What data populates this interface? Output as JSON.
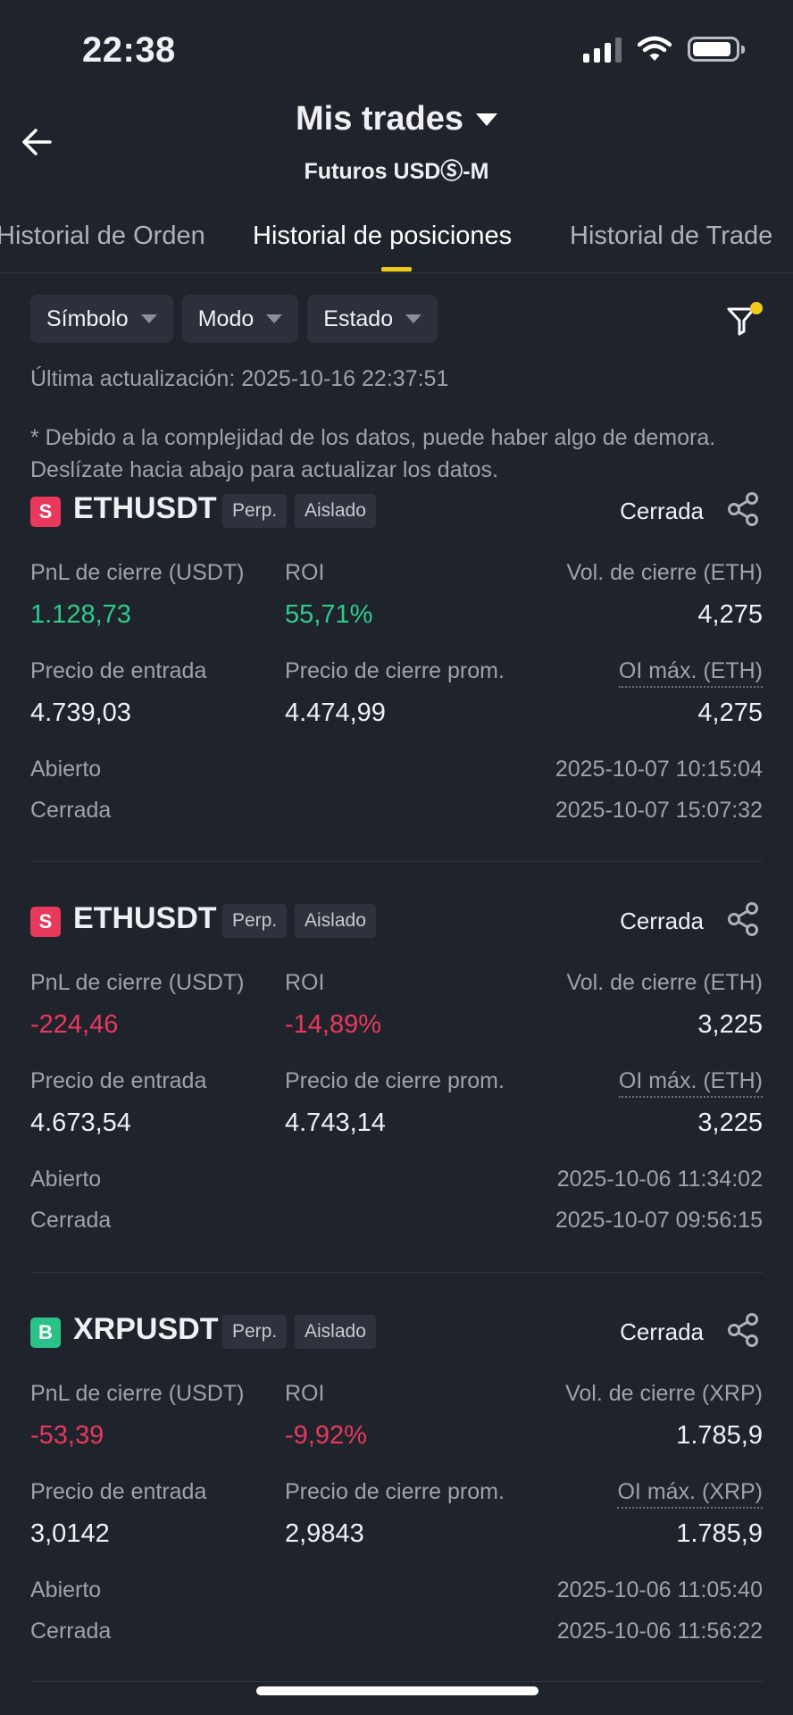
{
  "status_bar": {
    "time": "22:38"
  },
  "header": {
    "title": "Mis trades",
    "subtitle": "Futuros USDⓈ-M"
  },
  "tabs": [
    {
      "label": "Historial de Orden"
    },
    {
      "label": "Historial de posiciones",
      "active": true
    },
    {
      "label": "Historial de Trade"
    }
  ],
  "filters": [
    {
      "label": "Símbolo"
    },
    {
      "label": "Modo"
    },
    {
      "label": "Estado"
    }
  ],
  "last_update": "Última actualización: 2025-10-16 22:37:51",
  "notice": "* Debido a la complejidad de los datos, puede haber algo de demora. Deslízate hacia abajo para actualizar los datos.",
  "labels": {
    "pnl": "PnL de cierre (USDT)",
    "roi": "ROI",
    "entry": "Precio de entrada",
    "close_avg": "Precio de cierre prom.",
    "opened": "Abierto",
    "closed": "Cerrada"
  },
  "colors": {
    "accent": "#f0c91b",
    "positive": "#2ecb8b",
    "negative": "#e8395d",
    "background": "#1f232c"
  },
  "positions": [
    {
      "side": "S",
      "symbol": "ETHUSDT",
      "type": "Perp.",
      "mode": "Aislado",
      "status": "Cerrada",
      "pnl": "1.128,73",
      "roi": "55,71%",
      "close_vol_label": "Vol. de cierre (ETH)",
      "close_vol": "4,275",
      "entry": "4.739,03",
      "close_avg": "4.474,99",
      "max_oi_label": "OI máx. (ETH)",
      "max_oi": "4,275",
      "opened": "2025-10-07 10:15:04",
      "closed": "2025-10-07 15:07:32"
    },
    {
      "side": "S",
      "symbol": "ETHUSDT",
      "type": "Perp.",
      "mode": "Aislado",
      "status": "Cerrada",
      "pnl": "-224,46",
      "roi": "-14,89%",
      "close_vol_label": "Vol. de cierre (ETH)",
      "close_vol": "3,225",
      "entry": "4.673,54",
      "close_avg": "4.743,14",
      "max_oi_label": "OI máx. (ETH)",
      "max_oi": "3,225",
      "opened": "2025-10-06 11:34:02",
      "closed": "2025-10-07 09:56:15"
    },
    {
      "side": "B",
      "symbol": "XRPUSDT",
      "type": "Perp.",
      "mode": "Aislado",
      "status": "Cerrada",
      "pnl": "-53,39",
      "roi": "-9,92%",
      "close_vol_label": "Vol. de cierre (XRP)",
      "close_vol": "1.785,9",
      "entry": "3,0142",
      "close_avg": "2,9843",
      "max_oi_label": "OI máx. (XRP)",
      "max_oi": "1.785,9",
      "opened": "2025-10-06 11:05:40",
      "closed": "2025-10-06 11:56:22"
    }
  ]
}
